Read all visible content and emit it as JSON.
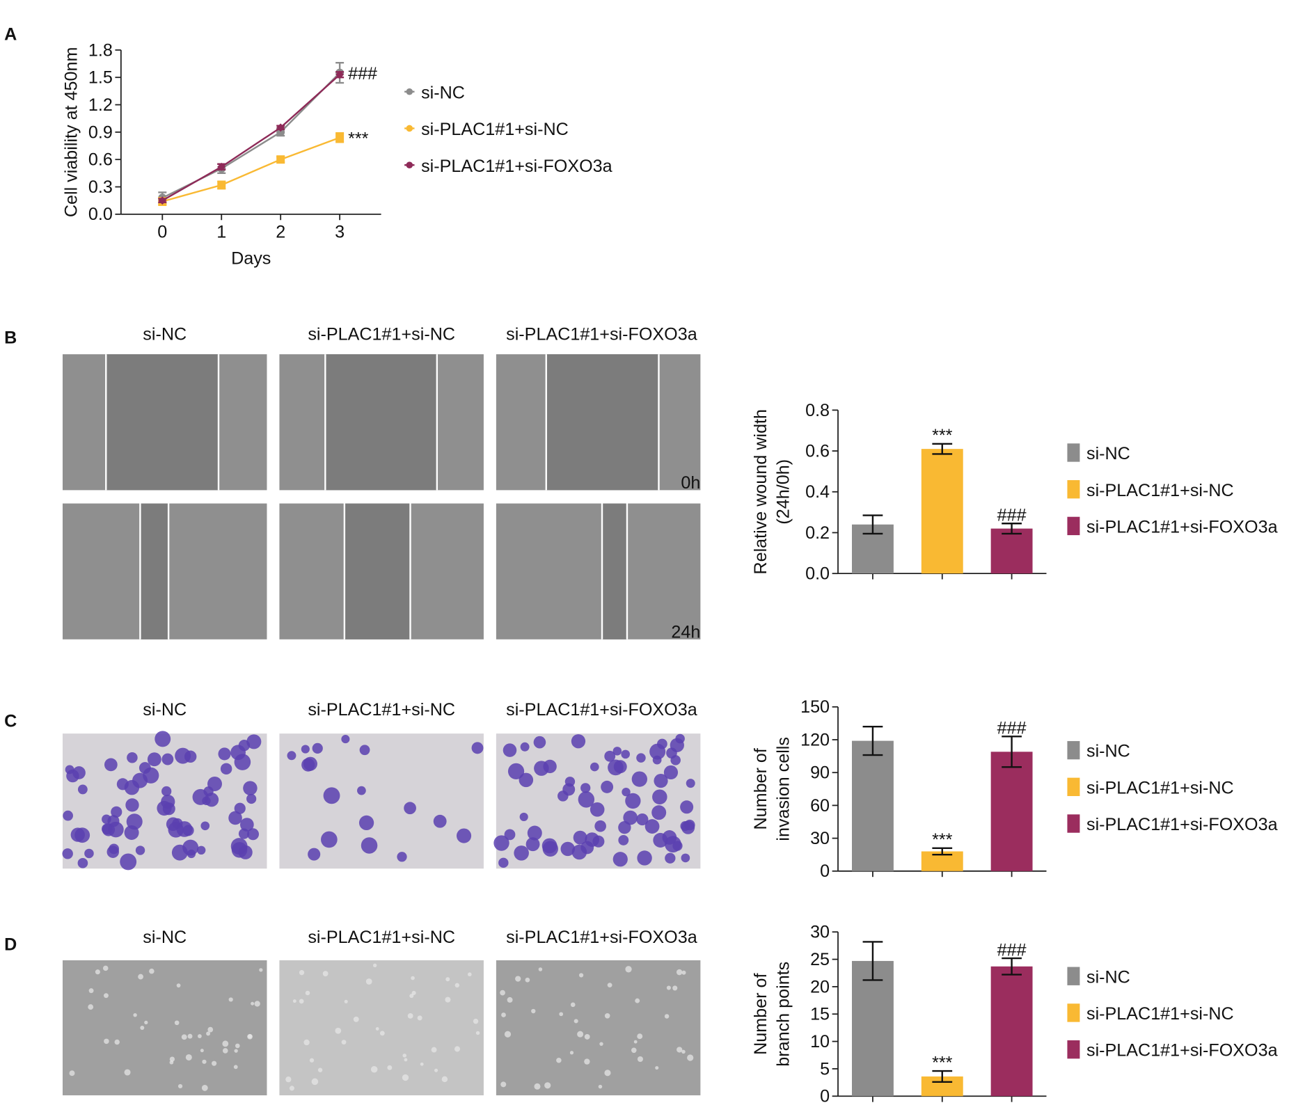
{
  "chart_data": [
    {
      "type": "line",
      "panel_label": "A",
      "ylabel": "Cell viability at 450nm",
      "xlabel": "Days",
      "x": [
        0,
        1,
        2,
        3
      ],
      "xlim": [
        -0.7,
        3.7
      ],
      "xticks": [
        0,
        1,
        2,
        3
      ],
      "ylim": [
        0,
        1.8
      ],
      "yticks": [
        {
          "value": 0,
          "label": "0.0"
        },
        0.3,
        0.6,
        0.9,
        1.2,
        1.5,
        1.8
      ],
      "series": [
        {
          "name": "si-NC",
          "color": "#8c8c8c",
          "values": [
            0.18,
            0.5,
            0.9,
            1.55
          ],
          "errors": [
            0.06,
            0.05,
            0.04,
            0.11
          ],
          "annotation": "###"
        },
        {
          "name": "si-PLAC1#1+si-NC",
          "color": "#f9b933",
          "values": [
            0.14,
            0.32,
            0.6,
            0.84
          ],
          "errors": [
            0.04,
            0.04,
            0.03,
            0.05
          ],
          "annotation": "***"
        },
        {
          "name": "si-PLAC1#1+si-FOXO3a",
          "color": "#8e2a58",
          "values": [
            0.15,
            0.52,
            0.95,
            1.53
          ],
          "errors": [
            0.02,
            0.03,
            0.02,
            0.03
          ]
        }
      ]
    },
    {
      "type": "bar",
      "panel_label": "B",
      "ylabel": [
        "Relative wound width",
        "(24h/0h)"
      ],
      "image_titles": [
        "si-NC",
        "si-PLAC1#1+si-NC",
        "si-PLAC1#1+si-FOXO3a"
      ],
      "time_labels": [
        "0h",
        "24h"
      ],
      "ylim": [
        0,
        0.8
      ],
      "yticks": [
        {
          "value": 0,
          "label": "0.0"
        },
        0.2,
        0.4,
        0.6,
        0.8
      ],
      "series": [
        {
          "name": "si-NC",
          "color": "#8c8c8c",
          "values": [
            0.24
          ],
          "errors": [
            0.045
          ]
        },
        {
          "name": "si-PLAC1#1+si-NC",
          "color": "#f9b933",
          "values": [
            0.61
          ],
          "errors": [
            0.025
          ],
          "annotation": "***"
        },
        {
          "name": "si-PLAC1#1+si-FOXO3a",
          "color": "#9b2d5e",
          "values": [
            0.22
          ],
          "errors": [
            0.025
          ],
          "annotation": "###"
        }
      ]
    },
    {
      "type": "bar",
      "panel_label": "C",
      "ylabel": [
        "Number of",
        "invasion cells"
      ],
      "image_titles": [
        "si-NC",
        "si-PLAC1#1+si-NC",
        "si-PLAC1#1+si-FOXO3a"
      ],
      "ylim": [
        0,
        150
      ],
      "yticks": [
        0,
        30,
        60,
        90,
        120,
        150
      ],
      "series": [
        {
          "name": "si-NC",
          "color": "#8c8c8c",
          "values": [
            119
          ],
          "errors": [
            13
          ]
        },
        {
          "name": "si-PLAC1#1+si-NC",
          "color": "#f9b933",
          "values": [
            18
          ],
          "errors": [
            3
          ],
          "annotation": "***"
        },
        {
          "name": "si-PLAC1#1+si-FOXO3a",
          "color": "#9b2d5e",
          "values": [
            109
          ],
          "errors": [
            14
          ],
          "annotation": "###"
        }
      ]
    },
    {
      "type": "bar",
      "panel_label": "D",
      "ylabel": [
        "Number of",
        "branch points"
      ],
      "image_titles": [
        "si-NC",
        "si-PLAC1#1+si-NC",
        "si-PLAC1#1+si-FOXO3a"
      ],
      "ylim": [
        0,
        30
      ],
      "yticks": [
        0,
        5,
        10,
        15,
        20,
        25,
        30
      ],
      "series": [
        {
          "name": "si-NC",
          "color": "#8c8c8c",
          "values": [
            24.7
          ],
          "errors": [
            3.5
          ]
        },
        {
          "name": "si-PLAC1#1+si-NC",
          "color": "#f9b933",
          "values": [
            3.6
          ],
          "errors": [
            1.0
          ],
          "annotation": "***"
        },
        {
          "name": "si-PLAC1#1+si-FOXO3a",
          "color": "#9b2d5e",
          "values": [
            23.7
          ],
          "errors": [
            1.5
          ],
          "annotation": "###"
        }
      ]
    }
  ]
}
